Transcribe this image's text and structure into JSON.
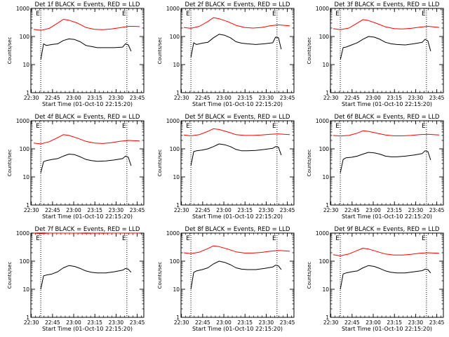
{
  "chart_data": [
    {
      "type": "line",
      "title": "Det 1f BLACK = Events, RED = LLD",
      "xlabel": "Start Time (01-Oct-10 22:15:20)",
      "ylabel": "Counts/sec",
      "xticks": [
        "22:30",
        "22:45",
        "23:00",
        "23:15",
        "23:30",
        "23:45"
      ],
      "yticks": [
        "1",
        "10",
        "100",
        "1000"
      ],
      "xrange_min": [
        15,
        95
      ],
      "ylim": [
        1,
        1000
      ],
      "yscale": "log",
      "markers": [
        {
          "x": 22,
          "label": "E"
        },
        {
          "x": 83,
          "label": "E"
        }
      ],
      "series": [
        {
          "color": "#ff0000",
          "x": [
            17,
            22,
            28,
            34,
            38,
            42,
            48,
            54,
            60,
            66,
            72,
            78,
            84,
            88,
            92
          ],
          "y": [
            180,
            165,
            195,
            300,
            410,
            380,
            300,
            210,
            180,
            175,
            185,
            205,
            230,
            230,
            225
          ]
        },
        {
          "color": "#000000",
          "x": [
            22,
            24,
            26,
            30,
            34,
            38,
            42,
            46,
            50,
            54,
            58,
            62,
            68,
            74,
            80,
            82,
            84,
            86
          ],
          "y": [
            15,
            55,
            48,
            52,
            55,
            72,
            82,
            78,
            65,
            48,
            44,
            40,
            40,
            40,
            42,
            55,
            50,
            30
          ]
        }
      ]
    },
    {
      "type": "line",
      "title": "Det 2f BLACK = Events, RED = LLD",
      "xlabel": "Start Time (01-Oct-10 22:15:20)",
      "ylabel": "Counts/sec",
      "xticks": [
        "22:30",
        "22:45",
        "23:00",
        "23:15",
        "23:30",
        "23:45"
      ],
      "yticks": [
        "1",
        "10",
        "100",
        "1000"
      ],
      "xrange_min": [
        15,
        95
      ],
      "ylim": [
        1,
        1000
      ],
      "yscale": "log",
      "markers": [
        {
          "x": 22,
          "label": "E"
        },
        {
          "x": 83,
          "label": "E"
        }
      ],
      "series": [
        {
          "color": "#ff0000",
          "x": [
            17,
            22,
            28,
            34,
            38,
            42,
            48,
            54,
            60,
            66,
            72,
            78,
            84,
            88,
            92
          ],
          "y": [
            210,
            195,
            230,
            340,
            470,
            430,
            340,
            250,
            210,
            200,
            210,
            240,
            260,
            250,
            240
          ]
        },
        {
          "color": "#000000",
          "x": [
            22,
            24,
            26,
            30,
            34,
            38,
            42,
            46,
            50,
            54,
            58,
            62,
            68,
            74,
            80,
            82,
            84,
            86
          ],
          "y": [
            18,
            60,
            52,
            58,
            62,
            90,
            120,
            110,
            90,
            65,
            58,
            55,
            52,
            55,
            60,
            95,
            90,
            35
          ]
        }
      ]
    },
    {
      "type": "line",
      "title": "Det 3f BLACK = Events, RED = LLD",
      "xlabel": "Start Time (01-Oct-10 22:15:20)",
      "ylabel": "Counts/sec",
      "xticks": [
        "22:30",
        "22:45",
        "23:00",
        "23:15",
        "23:30",
        "23:45"
      ],
      "yticks": [
        "1",
        "10",
        "100",
        "1000"
      ],
      "xrange_min": [
        15,
        95
      ],
      "ylim": [
        1,
        1000
      ],
      "yscale": "log",
      "markers": [
        {
          "x": 22,
          "label": "E"
        },
        {
          "x": 83,
          "label": "E"
        }
      ],
      "series": [
        {
          "color": "#ff0000",
          "x": [
            17,
            22,
            28,
            34,
            38,
            42,
            48,
            54,
            60,
            66,
            72,
            78,
            84,
            88,
            92
          ],
          "y": [
            190,
            175,
            200,
            300,
            400,
            370,
            290,
            220,
            190,
            185,
            195,
            215,
            230,
            220,
            210
          ]
        },
        {
          "color": "#000000",
          "x": [
            22,
            24,
            26,
            30,
            34,
            38,
            42,
            46,
            50,
            54,
            58,
            62,
            68,
            74,
            80,
            82,
            84,
            86
          ],
          "y": [
            15,
            40,
            42,
            50,
            60,
            80,
            100,
            95,
            80,
            62,
            55,
            52,
            50,
            55,
            62,
            80,
            70,
            30
          ]
        }
      ]
    },
    {
      "type": "line",
      "title": "Det 4f BLACK = Events, RED = LLD",
      "xlabel": "Start Time (01-Oct-10 22:15:20)",
      "ylabel": "Counts/sec",
      "xticks": [
        "22:30",
        "22:45",
        "23:00",
        "23:15",
        "23:30",
        "23:45"
      ],
      "yticks": [
        "1",
        "10",
        "100",
        "1000"
      ],
      "xrange_min": [
        15,
        95
      ],
      "ylim": [
        1,
        1000
      ],
      "yscale": "log",
      "markers": [
        {
          "x": 22,
          "label": "E"
        },
        {
          "x": 83,
          "label": "E"
        }
      ],
      "series": [
        {
          "color": "#ff0000",
          "x": [
            17,
            22,
            28,
            34,
            38,
            42,
            48,
            54,
            60,
            66,
            72,
            78,
            84,
            88,
            92
          ],
          "y": [
            160,
            150,
            180,
            250,
            320,
            300,
            240,
            185,
            160,
            155,
            165,
            185,
            200,
            195,
            190
          ]
        },
        {
          "color": "#000000",
          "x": [
            22,
            24,
            26,
            30,
            34,
            38,
            42,
            46,
            50,
            54,
            58,
            62,
            68,
            74,
            80,
            82,
            84,
            86
          ],
          "y": [
            14,
            35,
            38,
            42,
            45,
            55,
            65,
            62,
            52,
            42,
            38,
            36,
            37,
            40,
            45,
            55,
            50,
            25
          ]
        }
      ]
    },
    {
      "type": "line",
      "title": "Det 5f BLACK = Events, RED = LLD",
      "xlabel": "Start Time (01-Oct-10 22:15:20)",
      "ylabel": "Counts/sec",
      "xticks": [
        "22:30",
        "22:45",
        "23:00",
        "23:15",
        "23:30",
        "23:45"
      ],
      "yticks": [
        "1",
        "10",
        "100",
        "1000"
      ],
      "xrange_min": [
        15,
        95
      ],
      "ylim": [
        1,
        1000
      ],
      "yscale": "log",
      "markers": [
        {
          "x": 22,
          "label": "E"
        },
        {
          "x": 83,
          "label": "E"
        }
      ],
      "series": [
        {
          "color": "#ff0000",
          "x": [
            17,
            22,
            28,
            34,
            38,
            42,
            48,
            54,
            60,
            66,
            72,
            78,
            84,
            88,
            92
          ],
          "y": [
            310,
            290,
            320,
            420,
            520,
            490,
            400,
            320,
            300,
            300,
            310,
            330,
            340,
            330,
            320
          ]
        },
        {
          "color": "#000000",
          "x": [
            22,
            24,
            26,
            30,
            34,
            38,
            42,
            46,
            50,
            54,
            58,
            62,
            68,
            74,
            80,
            82,
            84,
            86
          ],
          "y": [
            25,
            80,
            85,
            90,
            100,
            120,
            150,
            140,
            120,
            95,
            85,
            85,
            88,
            95,
            105,
            120,
            115,
            60
          ]
        }
      ]
    },
    {
      "type": "line",
      "title": "Det 6f BLACK = Events, RED = LLD",
      "xlabel": "Start Time (01-Oct-10 22:15:20)",
      "ylabel": "Counts/sec",
      "xticks": [
        "22:30",
        "22:45",
        "23:00",
        "23:15",
        "23:30",
        "23:45"
      ],
      "yticks": [
        "1",
        "10",
        "100",
        "1000"
      ],
      "xrange_min": [
        15,
        95
      ],
      "ylim": [
        1,
        1000
      ],
      "yscale": "log",
      "markers": [
        {
          "x": 22,
          "label": "E"
        },
        {
          "x": 83,
          "label": "E"
        }
      ],
      "series": [
        {
          "color": "#ff0000",
          "x": [
            17,
            22,
            28,
            34,
            38,
            42,
            48,
            54,
            60,
            66,
            72,
            78,
            84,
            88,
            92
          ],
          "y": [
            300,
            285,
            300,
            360,
            440,
            420,
            360,
            310,
            290,
            290,
            300,
            320,
            330,
            320,
            310
          ]
        },
        {
          "color": "#000000",
          "x": [
            22,
            24,
            26,
            30,
            34,
            38,
            42,
            46,
            50,
            54,
            58,
            62,
            68,
            74,
            80,
            82,
            84,
            86
          ],
          "y": [
            14,
            42,
            48,
            50,
            55,
            65,
            75,
            72,
            65,
            55,
            52,
            52,
            55,
            60,
            68,
            85,
            80,
            40
          ]
        }
      ]
    },
    {
      "type": "line",
      "title": "Det 7f BLACK = Events, RED = LLD",
      "xlabel": "Start Time (01-Oct-10 22:15:20)",
      "ylabel": "Counts/sec",
      "xticks": [
        "22:30",
        "22:45",
        "23:00",
        "23:15",
        "23:30",
        "23:45"
      ],
      "yticks": [
        "1",
        "10",
        "100",
        "1000"
      ],
      "xrange_min": [
        15,
        95
      ],
      "ylim": [
        1,
        1000
      ],
      "yscale": "log",
      "markers": [
        {
          "x": 22,
          "label": "E"
        },
        {
          "x": 83,
          "label": "E"
        }
      ],
      "series": [
        {
          "color": "#ff0000",
          "x": [
            17,
            22,
            28,
            34,
            38,
            42,
            48,
            54,
            60,
            66,
            72,
            78,
            84,
            88,
            92
          ],
          "y": [
            1000,
            950,
            1000,
            1000,
            1000,
            1000,
            1000,
            980,
            1000,
            990,
            1000,
            1000,
            1000,
            1000,
            1000
          ]
        },
        {
          "color": "#000000",
          "x": [
            22,
            24,
            26,
            30,
            34,
            38,
            42,
            46,
            50,
            54,
            58,
            62,
            68,
            74,
            80,
            82,
            84,
            86
          ],
          "y": [
            10,
            30,
            32,
            35,
            42,
            58,
            70,
            65,
            55,
            45,
            40,
            38,
            38,
            42,
            48,
            55,
            52,
            40
          ]
        }
      ]
    },
    {
      "type": "line",
      "title": "Det 8f BLACK = Events, RED = LLD",
      "xlabel": "Start Time (01-Oct-10 22:15:20)",
      "ylabel": "Counts/sec",
      "xticks": [
        "22:30",
        "22:45",
        "23:00",
        "23:15",
        "23:30",
        "23:45"
      ],
      "yticks": [
        "1",
        "10",
        "100",
        "1000"
      ],
      "xrange_min": [
        15,
        95
      ],
      "ylim": [
        1,
        1000
      ],
      "yscale": "log",
      "markers": [
        {
          "x": 22,
          "label": "E"
        },
        {
          "x": 83,
          "label": "E"
        }
      ],
      "series": [
        {
          "color": "#ff0000",
          "x": [
            17,
            22,
            28,
            34,
            38,
            42,
            48,
            54,
            60,
            66,
            72,
            78,
            84,
            88,
            92
          ],
          "y": [
            200,
            185,
            210,
            280,
            350,
            330,
            270,
            215,
            195,
            195,
            205,
            225,
            240,
            235,
            225
          ]
        },
        {
          "color": "#000000",
          "x": [
            22,
            24,
            26,
            30,
            34,
            38,
            42,
            46,
            50,
            54,
            58,
            62,
            68,
            74,
            80,
            82,
            84,
            86
          ],
          "y": [
            10,
            40,
            45,
            50,
            58,
            80,
            100,
            90,
            75,
            58,
            52,
            50,
            50,
            55,
            62,
            72,
            68,
            50
          ]
        }
      ]
    },
    {
      "type": "line",
      "title": "Det 9f BLACK = Events, RED = LLD",
      "xlabel": "Start Time (01-Oct-10 22:15:20)",
      "ylabel": "Counts/sec",
      "xticks": [
        "22:30",
        "22:45",
        "23:00",
        "23:15",
        "23:30",
        "23:45"
      ],
      "yticks": [
        "1",
        "10",
        "100",
        "1000"
      ],
      "xrange_min": [
        15,
        95
      ],
      "ylim": [
        1,
        1000
      ],
      "yscale": "log",
      "markers": [
        {
          "x": 22,
          "label": "E"
        },
        {
          "x": 83,
          "label": "E"
        }
      ],
      "series": [
        {
          "color": "#ff0000",
          "x": [
            17,
            22,
            28,
            34,
            38,
            42,
            48,
            54,
            60,
            66,
            72,
            78,
            84,
            88,
            92
          ],
          "y": [
            170,
            155,
            180,
            240,
            290,
            270,
            220,
            180,
            165,
            165,
            175,
            190,
            200,
            195,
            190
          ]
        },
        {
          "color": "#000000",
          "x": [
            22,
            24,
            26,
            30,
            34,
            38,
            42,
            46,
            50,
            54,
            58,
            62,
            68,
            74,
            80,
            82,
            84,
            86
          ],
          "y": [
            10,
            35,
            38,
            42,
            45,
            58,
            70,
            65,
            55,
            45,
            40,
            38,
            38,
            42,
            46,
            52,
            50,
            38
          ]
        }
      ]
    }
  ]
}
